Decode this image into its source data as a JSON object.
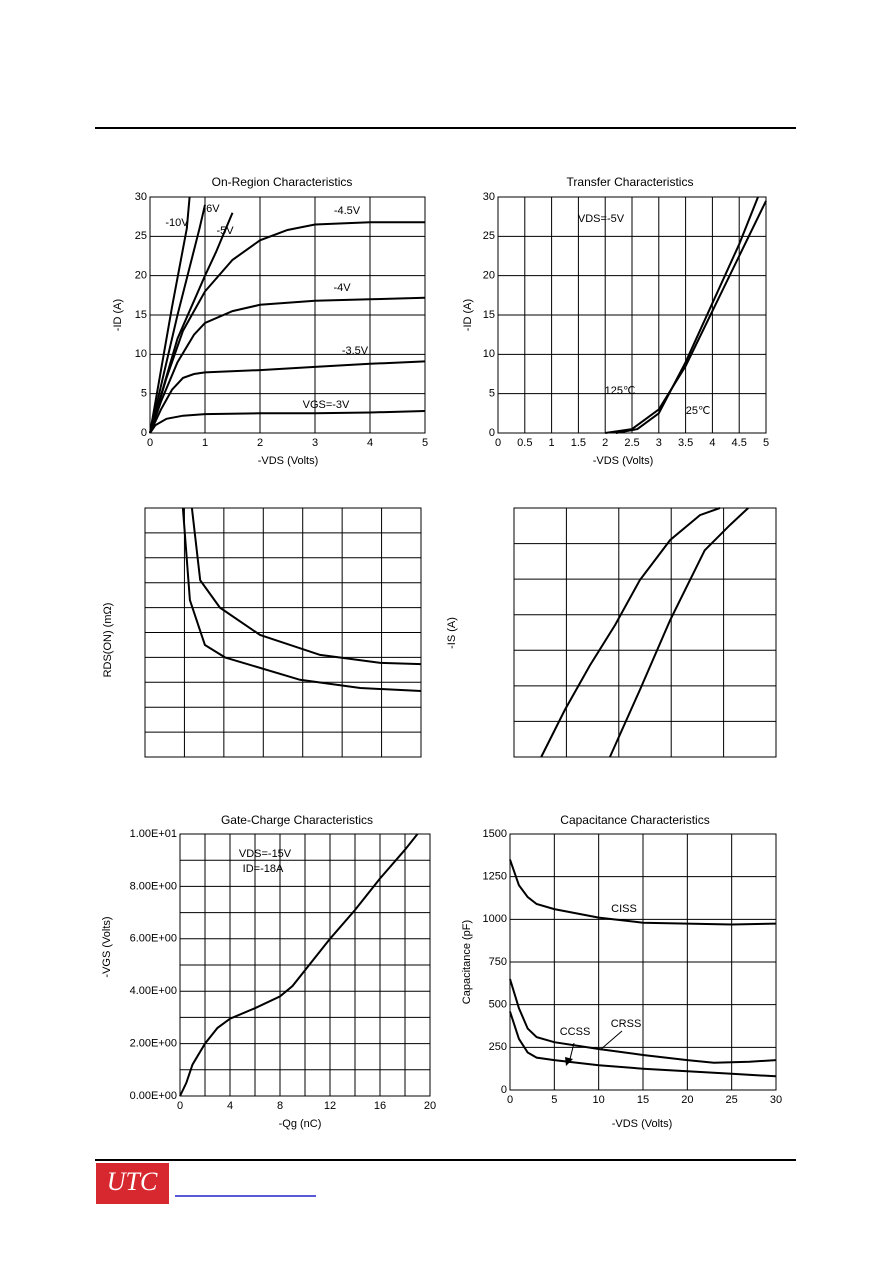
{
  "chart_data": [
    {
      "type": "line",
      "title": "On-Region Characteristics",
      "x_label": "-VDS (Volts)",
      "y_label": "-ID (A)",
      "xlim": [
        0,
        5
      ],
      "xticks": [
        0,
        1,
        2,
        3,
        4,
        5
      ],
      "ylim": [
        0,
        30
      ],
      "yticks": [
        0,
        5,
        10,
        15,
        20,
        25,
        30
      ],
      "grid": true,
      "series": [
        {
          "name": "VGS=-3V",
          "color": "#000000",
          "x": [
            0,
            0.1,
            0.3,
            0.6,
            1,
            2,
            3,
            4,
            5
          ],
          "values": [
            0,
            1,
            1.8,
            2.2,
            2.4,
            2.5,
            2.5,
            2.6,
            2.8
          ]
        },
        {
          "name": "-3.5V",
          "color": "#000000",
          "x": [
            0,
            0.2,
            0.4,
            0.6,
            0.8,
            1,
            2,
            3,
            4,
            5
          ],
          "values": [
            0,
            3,
            5.5,
            7,
            7.5,
            7.7,
            8,
            8.4,
            8.8,
            9.1
          ]
        },
        {
          "name": "-4V",
          "color": "#000000",
          "x": [
            0,
            0.2,
            0.5,
            0.8,
            1,
            1.5,
            2,
            3,
            4,
            5
          ],
          "values": [
            0,
            4,
            9,
            12.5,
            14,
            15.5,
            16.3,
            16.8,
            17,
            17.2
          ]
        },
        {
          "name": "-4.5V",
          "color": "#000000",
          "x": [
            0,
            0.3,
            0.6,
            1,
            1.5,
            2,
            2.5,
            3,
            4,
            5
          ],
          "values": [
            0,
            7,
            13,
            18,
            22,
            24.5,
            25.8,
            26.5,
            26.8,
            26.8
          ]
        },
        {
          "name": "-5V",
          "color": "#000000",
          "x": [
            0,
            0.5,
            1,
            1.2,
            1.5
          ],
          "values": [
            0,
            12,
            20,
            23,
            28
          ]
        },
        {
          "name": "-6V",
          "color": "#000000",
          "x": [
            0,
            0.5,
            0.9,
            1.0
          ],
          "values": [
            0,
            15,
            26,
            29
          ]
        },
        {
          "name": "-10V",
          "color": "#000000",
          "x": [
            0,
            0.4,
            0.67,
            0.72
          ],
          "values": [
            0,
            16,
            26,
            30
          ]
        }
      ]
    },
    {
      "type": "line",
      "title": "Transfer Characteristics",
      "x_label": "-VDS (Volts)",
      "y_label": "-ID (A)",
      "annotations": [
        "VDS=-5V"
      ],
      "xlim": [
        0,
        5
      ],
      "xticks": [
        0,
        0.5,
        1,
        1.5,
        2,
        2.5,
        3,
        3.5,
        4,
        4.5,
        5
      ],
      "ylim": [
        0,
        30
      ],
      "yticks": [
        0,
        5,
        10,
        15,
        20,
        25,
        30
      ],
      "grid": true,
      "series": [
        {
          "name": "125℃",
          "color": "#000000",
          "x": [
            2,
            2.5,
            3,
            3.5,
            4,
            4.5,
            5
          ],
          "values": [
            0,
            0.5,
            3,
            8.5,
            15.5,
            22.5,
            29.5
          ]
        },
        {
          "name": "25℃",
          "color": "#000000",
          "x": [
            2.2,
            2.6,
            3,
            3.5,
            4,
            4.5,
            4.85
          ],
          "values": [
            0,
            0.5,
            2.5,
            9,
            16.5,
            24,
            30
          ]
        }
      ]
    },
    {
      "type": "line",
      "y_label": "RDS(ON) (mΩ)",
      "xlim": [
        0,
        7
      ],
      "ylim": [
        0,
        10
      ],
      "series": [
        {
          "color": "#000000",
          "x": [
            1.19,
            1.4,
            1.9,
            2.92,
            4.44,
            5.97,
            7
          ],
          "values": [
            10,
            7.1,
            6.0,
            4.9,
            4.1,
            3.78,
            3.73
          ]
        },
        {
          "color": "#000000",
          "x": [
            0.96,
            1.14,
            1.52,
            2.03,
            3.93,
            5.46,
            7
          ],
          "values": [
            10,
            6.3,
            4.5,
            4.0,
            3.1,
            2.77,
            2.65
          ]
        }
      ]
    },
    {
      "type": "line",
      "y_label": "-IS (A)",
      "xlim": [
        0,
        5
      ],
      "ylim": [
        0,
        7
      ],
      "series": [
        {
          "color": "#000000",
          "x": [
            0.52,
            0.97,
            1.45,
            1.93,
            2.4,
            2.98,
            3.55,
            3.93
          ],
          "values": [
            0,
            1.32,
            2.58,
            3.71,
            4.97,
            6.1,
            6.8,
            7.0
          ]
        },
        {
          "color": "#000000",
          "x": [
            1.83,
            2.4,
            2.98,
            3.64,
            4.12,
            4.47
          ],
          "values": [
            0,
            1.88,
            3.85,
            5.81,
            6.52,
            7.0
          ]
        }
      ]
    },
    {
      "type": "line",
      "title": "Gate-Charge Characteristics",
      "x_label": "-Qg (nC)",
      "y_label": "-VGS (Volts)",
      "annotations": [
        "VDS=-15V",
        "ID=-18A"
      ],
      "xlim": [
        0,
        20
      ],
      "xticks": [
        0,
        4,
        8,
        12,
        16,
        20
      ],
      "x_minor_grid": [
        2,
        6,
        10,
        14,
        18
      ],
      "ylim": [
        0,
        10
      ],
      "yticks": [
        {
          "value": 0,
          "label": "0.00E+00"
        },
        {
          "value": 2,
          "label": "2.00E+00"
        },
        {
          "value": 4,
          "label": "4.00E+00"
        },
        {
          "value": 6,
          "label": "6.00E+00"
        },
        {
          "value": 8,
          "label": "8.00E+00"
        },
        {
          "value": 10,
          "label": "1.00E+01"
        }
      ],
      "y_minor_grid": [
        1,
        3,
        5,
        7,
        9
      ],
      "grid": true,
      "series": [
        {
          "color": "#000000",
          "x": [
            0,
            0.5,
            1,
            2,
            3,
            4,
            6,
            8,
            9,
            10,
            12,
            14,
            16,
            18,
            19
          ],
          "values": [
            0,
            0.5,
            1.2,
            2.0,
            2.6,
            2.95,
            3.35,
            3.8,
            4.2,
            4.8,
            6.0,
            7.1,
            8.3,
            9.4,
            10
          ]
        }
      ]
    },
    {
      "type": "line",
      "title": "Capacitance Characteristics",
      "x_label": "-VDS (Volts)",
      "y_label": "Capacitance (pF)",
      "xlim": [
        0,
        30
      ],
      "xticks": [
        0,
        5,
        10,
        15,
        20,
        25,
        30
      ],
      "ylim": [
        0,
        1500
      ],
      "yticks": [
        0,
        250,
        500,
        750,
        1000,
        1250,
        1500
      ],
      "grid": true,
      "series": [
        {
          "name": "CISS",
          "color": "#000000",
          "x": [
            0,
            1,
            2,
            3,
            5,
            10,
            15,
            20,
            25,
            30
          ],
          "values": [
            1350,
            1200,
            1130,
            1090,
            1060,
            1010,
            980,
            975,
            970,
            975
          ]
        },
        {
          "name": "CRSS",
          "color": "#000000",
          "x": [
            0,
            1,
            2,
            3,
            5,
            10,
            15,
            20,
            23,
            27,
            30
          ],
          "values": [
            650,
            480,
            360,
            310,
            280,
            240,
            205,
            175,
            160,
            165,
            175
          ]
        },
        {
          "name": "CCSS",
          "color": "#000000",
          "x": [
            0,
            1,
            2,
            3,
            5,
            10,
            15,
            20,
            25,
            30
          ],
          "values": [
            460,
            300,
            220,
            190,
            175,
            145,
            125,
            110,
            95,
            80
          ]
        }
      ]
    }
  ],
  "footer": {
    "logo": "UTC"
  }
}
